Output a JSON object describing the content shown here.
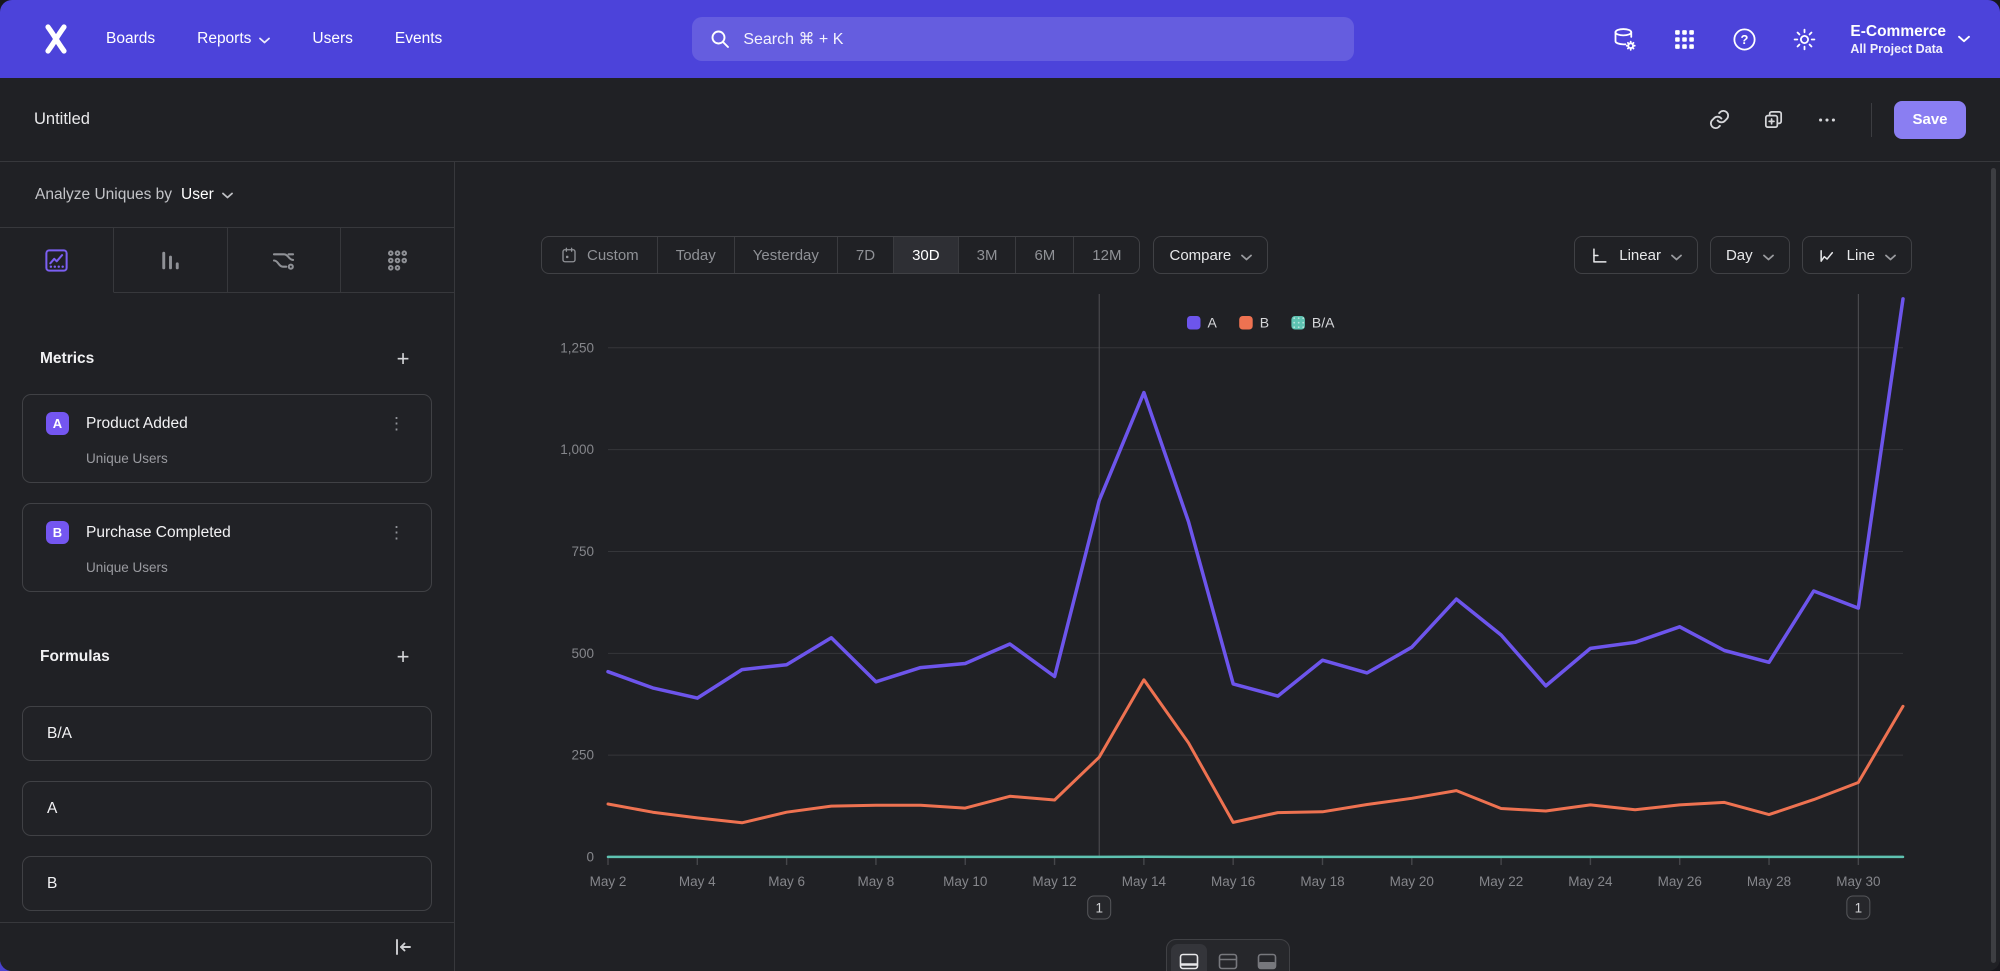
{
  "nav": {
    "logo": "mixpanel-x-logo",
    "items": [
      {
        "label": "Boards",
        "has_chevron": false
      },
      {
        "label": "Reports",
        "has_chevron": true
      },
      {
        "label": "Users",
        "has_chevron": false
      },
      {
        "label": "Events",
        "has_chevron": false
      }
    ],
    "search": {
      "placeholder": "Search  ⌘ + K"
    },
    "project": {
      "name": "E-Commerce",
      "subtitle": "All Project Data"
    }
  },
  "toolbar": {
    "title": "Untitled",
    "save_label": "Save"
  },
  "sidebar": {
    "analyze": {
      "prefix": "Analyze Uniques by",
      "value": "User"
    },
    "chart_tabs": [
      "line-chart",
      "bar-chart",
      "flow",
      "metrics-grid"
    ],
    "metrics": {
      "title": "Metrics",
      "items": [
        {
          "badge": "A",
          "name": "Product Added",
          "subtitle": "Unique Users"
        },
        {
          "badge": "B",
          "name": "Purchase Completed",
          "subtitle": "Unique Users"
        }
      ]
    },
    "formulas": {
      "title": "Formulas",
      "items": [
        {
          "name": "B/A"
        },
        {
          "name": "A"
        },
        {
          "name": "B"
        }
      ]
    }
  },
  "controls": {
    "date_ranges": [
      "Custom",
      "Today",
      "Yesterday",
      "7D",
      "30D",
      "3M",
      "6M",
      "12M"
    ],
    "selected_range": "30D",
    "compare_label": "Compare",
    "scale_label": "Linear",
    "interval_label": "Day",
    "chart_type_label": "Line"
  },
  "chart_data": {
    "type": "line",
    "title": "",
    "xlabel": "",
    "ylabel": "",
    "x": [
      "May 2",
      "May 3",
      "May 4",
      "May 5",
      "May 6",
      "May 7",
      "May 8",
      "May 9",
      "May 10",
      "May 11",
      "May 12",
      "May 13",
      "May 14",
      "May 15",
      "May 16",
      "May 17",
      "May 18",
      "May 19",
      "May 20",
      "May 21",
      "May 22",
      "May 23",
      "May 24",
      "May 25",
      "May 26",
      "May 27",
      "May 28",
      "May 29",
      "May 30",
      "May 31"
    ],
    "series": [
      {
        "name": "A",
        "color": "#6d55ec",
        "width": 3.5,
        "values": [
          455,
          415,
          390,
          460,
          472,
          538,
          430,
          465,
          475,
          523,
          443,
          875,
          1140,
          823,
          425,
          395,
          483,
          452,
          515,
          633,
          545,
          420,
          512,
          527,
          565,
          507,
          478,
          653,
          611,
          1370
        ]
      },
      {
        "name": "B",
        "color": "#ee7251",
        "width": 3,
        "values": [
          130,
          110,
          96,
          84,
          110,
          125,
          127,
          127,
          120,
          149,
          140,
          245,
          435,
          280,
          85,
          109,
          111,
          129,
          144,
          163,
          119,
          113,
          128,
          116,
          128,
          134,
          104,
          141,
          183,
          370
        ]
      },
      {
        "name": "B/A",
        "color": "#5ec2b1",
        "width": 2.5,
        "dotted_swatch": true,
        "values": [
          0.29,
          0.27,
          0.25,
          0.18,
          0.23,
          0.23,
          0.3,
          0.27,
          0.25,
          0.28,
          0.32,
          0.28,
          0.38,
          0.34,
          0.2,
          0.28,
          0.23,
          0.29,
          0.28,
          0.26,
          0.22,
          0.27,
          0.25,
          0.22,
          0.23,
          0.26,
          0.22,
          0.22,
          0.3,
          0.27
        ]
      }
    ],
    "ylim": [
      0,
      1250
    ],
    "yticks": [
      {
        "value": 0,
        "label": "0"
      },
      {
        "value": 250,
        "label": "250"
      },
      {
        "value": 500,
        "label": "500"
      },
      {
        "value": 750,
        "label": "750"
      },
      {
        "value": 1000,
        "label": "1,000"
      },
      {
        "value": 1250,
        "label": "1,250"
      }
    ],
    "x_tick_every": 2,
    "grid": "horizontal",
    "legend_position": "top-center",
    "annotations": [
      {
        "label": "1",
        "x": "May 13"
      },
      {
        "label": "1",
        "x": "May 30"
      }
    ]
  },
  "colors": {
    "nav_bg": "#4c43da",
    "panel_bg": "#202125",
    "border": "#37383c",
    "accent_purple": "#7456f1",
    "save_bg": "#8a7ef2",
    "series_a": "#6d55ec",
    "series_b": "#ee7251",
    "series_ba": "#5ec2b1",
    "grid_line": "#35363a",
    "annotation_line": "#505155",
    "muted_text": "#9a9ba0"
  }
}
